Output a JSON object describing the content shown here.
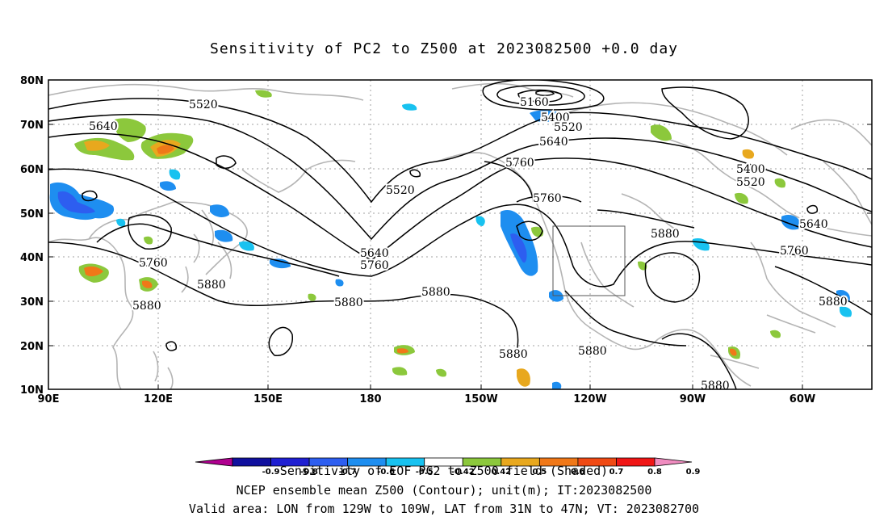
{
  "title": "Sensitivity of PC2 to Z500 at 2023082500 +0.0 day",
  "lat_labels": [
    "80N",
    "70N",
    "60N",
    "50N",
    "40N",
    "30N",
    "20N",
    "10N"
  ],
  "lon_labels": [
    "90E",
    "120E",
    "150E",
    "180",
    "150W",
    "120W",
    "90W",
    "60W"
  ],
  "contour_labels": [
    "5520",
    "5640",
    "5160",
    "5400",
    "5520",
    "5640",
    "5760",
    "5520",
    "5760",
    "5640",
    "5760",
    "5760",
    "5880",
    "5880",
    "5880",
    "5880",
    "5880",
    "5880",
    "5880",
    "5400",
    "5520",
    "5640",
    "5760",
    "5880",
    "5880"
  ],
  "colorbar": {
    "colors": [
      "#b00090",
      "#10109e",
      "#1f1fd2",
      "#2d5ef0",
      "#1e8ef0",
      "#18c2f0",
      "#ffffff",
      "#8cc83c",
      "#e8a81e",
      "#f07818",
      "#f04a14",
      "#f01616",
      "#f08cc0"
    ],
    "labels": [
      "-0.9",
      "-0.8",
      "-0.7",
      "-0.6",
      "-0.5",
      "-0.42",
      "0.42",
      "0.5",
      "0.6",
      "0.7",
      "0.8",
      "0.9"
    ],
    "caption": "Sensitivity of EOF PC2 to Z500 field (Shaded)"
  },
  "footer": {
    "line1": "NCEP ensemble mean Z500 (Contour); unit(m); IT:2023082500",
    "line2": "Valid area: LON from 129W to 109W, LAT from 31N to 47N; VT: 2023082700"
  }
}
